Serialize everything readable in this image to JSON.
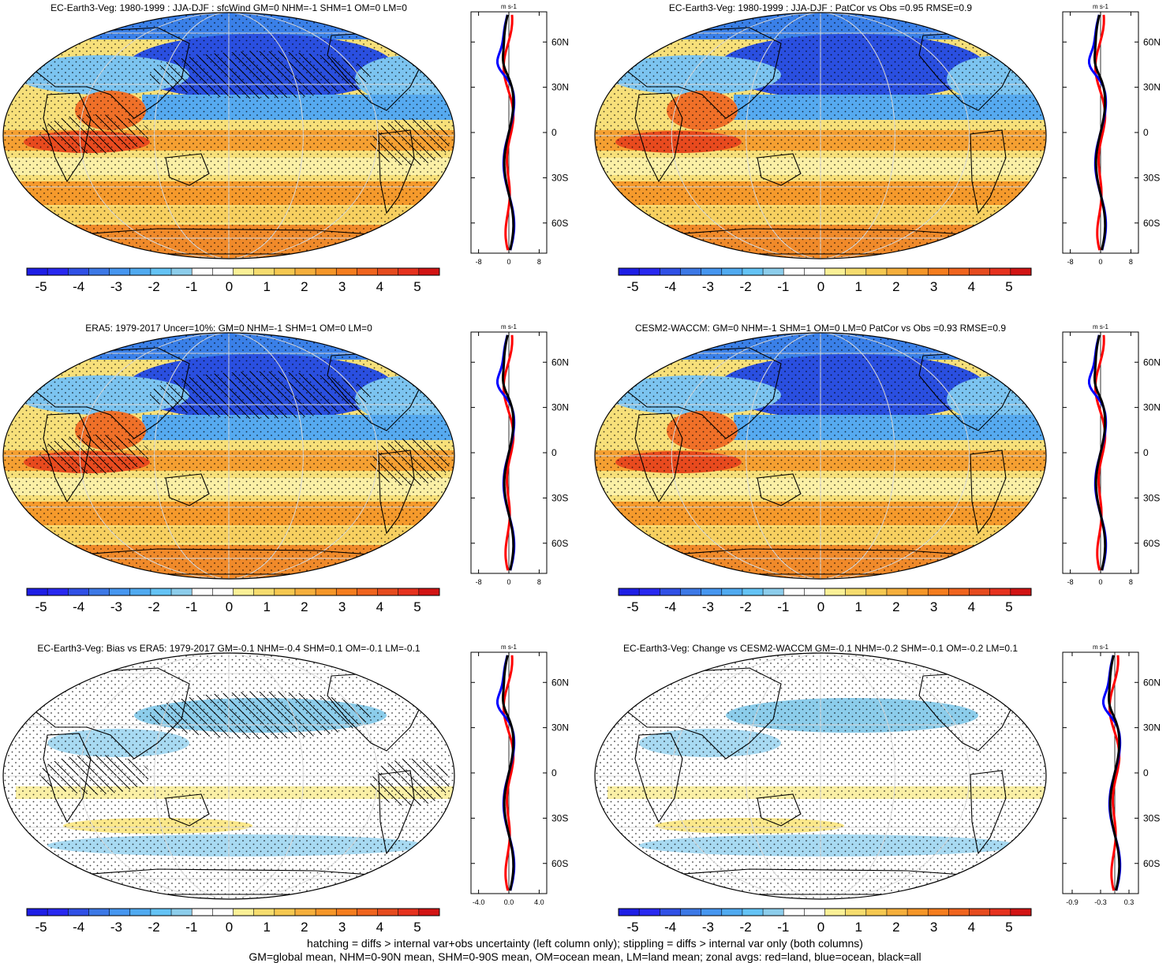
{
  "panels": [
    {
      "title": "EC-Earth3-Veg: 1980-1999 : JJA-DJF : sfcWind GM=0 NHM=-1 SHM=1 OM=0 LM=0",
      "pattern": "full",
      "hatch": true,
      "units": "m s-1",
      "zonal_ticks": [
        "-8",
        "0",
        "8"
      ],
      "zonal_range": [
        -10,
        10
      ],
      "lat_labels": [
        "60N",
        "30N",
        "0",
        "30S",
        "60S"
      ],
      "colorbar_ticks": [
        "-5",
        "-4",
        "-3",
        "-2",
        "-1",
        "0",
        "1",
        "2",
        "3",
        "4",
        "5"
      ]
    },
    {
      "title": "EC-Earth3-Veg: 1980-1999 : JJA-DJF : PatCor vs Obs =0.95 RMSE=0.9",
      "pattern": "full",
      "hatch": false,
      "units": "m s-1",
      "zonal_ticks": [
        "-8",
        "0",
        "8"
      ],
      "zonal_range": [
        -10,
        10
      ],
      "lat_labels": [
        "60N",
        "30N",
        "0",
        "30S",
        "60S"
      ],
      "colorbar_ticks": [
        "-5",
        "-4",
        "-3",
        "-2",
        "-1",
        "0",
        "1",
        "2",
        "3",
        "4",
        "5"
      ]
    },
    {
      "title": "ERA5: 1979-2017 Uncer=10%: GM=0 NHM=-1 SHM=1 OM=0 LM=0",
      "pattern": "full",
      "hatch": true,
      "units": "m s-1",
      "zonal_ticks": [
        "-8",
        "0",
        "8"
      ],
      "zonal_range": [
        -10,
        10
      ],
      "lat_labels": [
        "60N",
        "30N",
        "0",
        "30S",
        "60S"
      ],
      "colorbar_ticks": [
        "-5",
        "-4",
        "-3",
        "-2",
        "-1",
        "0",
        "1",
        "2",
        "3",
        "4",
        "5"
      ]
    },
    {
      "title": "CESM2-WACCM: GM=0 NHM=-1 SHM=1 OM=0 LM=0 PatCor vs Obs =0.93 RMSE=0.9",
      "pattern": "full",
      "hatch": false,
      "units": "m s-1",
      "zonal_ticks": [
        "-8",
        "0",
        "8"
      ],
      "zonal_range": [
        -10,
        10
      ],
      "lat_labels": [
        "60N",
        "30N",
        "0",
        "30S",
        "60S"
      ],
      "colorbar_ticks": [
        "-5",
        "-4",
        "-3",
        "-2",
        "-1",
        "0",
        "1",
        "2",
        "3",
        "4",
        "5"
      ]
    },
    {
      "title": "EC-Earth3-Veg: Bias vs ERA5: 1979-2017 GM=-0.1 NHM=-0.4 SHM=0.1 OM=-0.1 LM=-0.1",
      "pattern": "weak",
      "hatch": true,
      "units": "m s-1",
      "zonal_ticks": [
        "-4.0",
        "0.0",
        "4.0"
      ],
      "zonal_range": [
        -5,
        5
      ],
      "lat_labels": [
        "60N",
        "30N",
        "0",
        "30S",
        "60S"
      ],
      "colorbar_ticks": [
        "-5",
        "-4",
        "-3",
        "-2",
        "-1",
        "0",
        "1",
        "2",
        "3",
        "4",
        "5"
      ]
    },
    {
      "title": "EC-Earth3-Veg: Change vs CESM2-WACCM GM=-0.1 NHM=-0.2 SHM=-0.1 OM=-0.2 LM=0.1",
      "pattern": "weak",
      "hatch": false,
      "units": "m s-1",
      "zonal_ticks": [
        "-0.9",
        "-0.3",
        "0.3"
      ],
      "zonal_range": [
        -1.1,
        0.5
      ],
      "lat_labels": [
        "60N",
        "30N",
        "0",
        "30S",
        "60S"
      ],
      "colorbar_ticks": [
        "-5",
        "-4",
        "-3",
        "-2",
        "-1",
        "0",
        "1",
        "2",
        "3",
        "4",
        "5"
      ]
    }
  ],
  "colorbar_colors": [
    "#1e1ee6",
    "#2828f0",
    "#3050e6",
    "#3c78e6",
    "#4696f0",
    "#50aaf0",
    "#64c3f5",
    "#8ccdeb",
    "#ffffff",
    "#ffffff",
    "#faf096",
    "#f5dc6e",
    "#f5c850",
    "#f5af3c",
    "#f59628",
    "#f57d1e",
    "#f0641e",
    "#e64b1e",
    "#e6321e",
    "#d21414"
  ],
  "zonal_colors": {
    "land": "#ff0000",
    "ocean": "#0000ff",
    "all": "#000000"
  },
  "footer": {
    "line1": "hatching = diffs > internal var+obs uncertainty (left column only); stippling = diffs > internal var only (both columns)",
    "line2": "GM=global mean, NHM=0-90N mean, SHM=0-90S mean, OM=ocean mean, LM=land mean; zonal avgs: red=land, blue=ocean, black=all"
  }
}
